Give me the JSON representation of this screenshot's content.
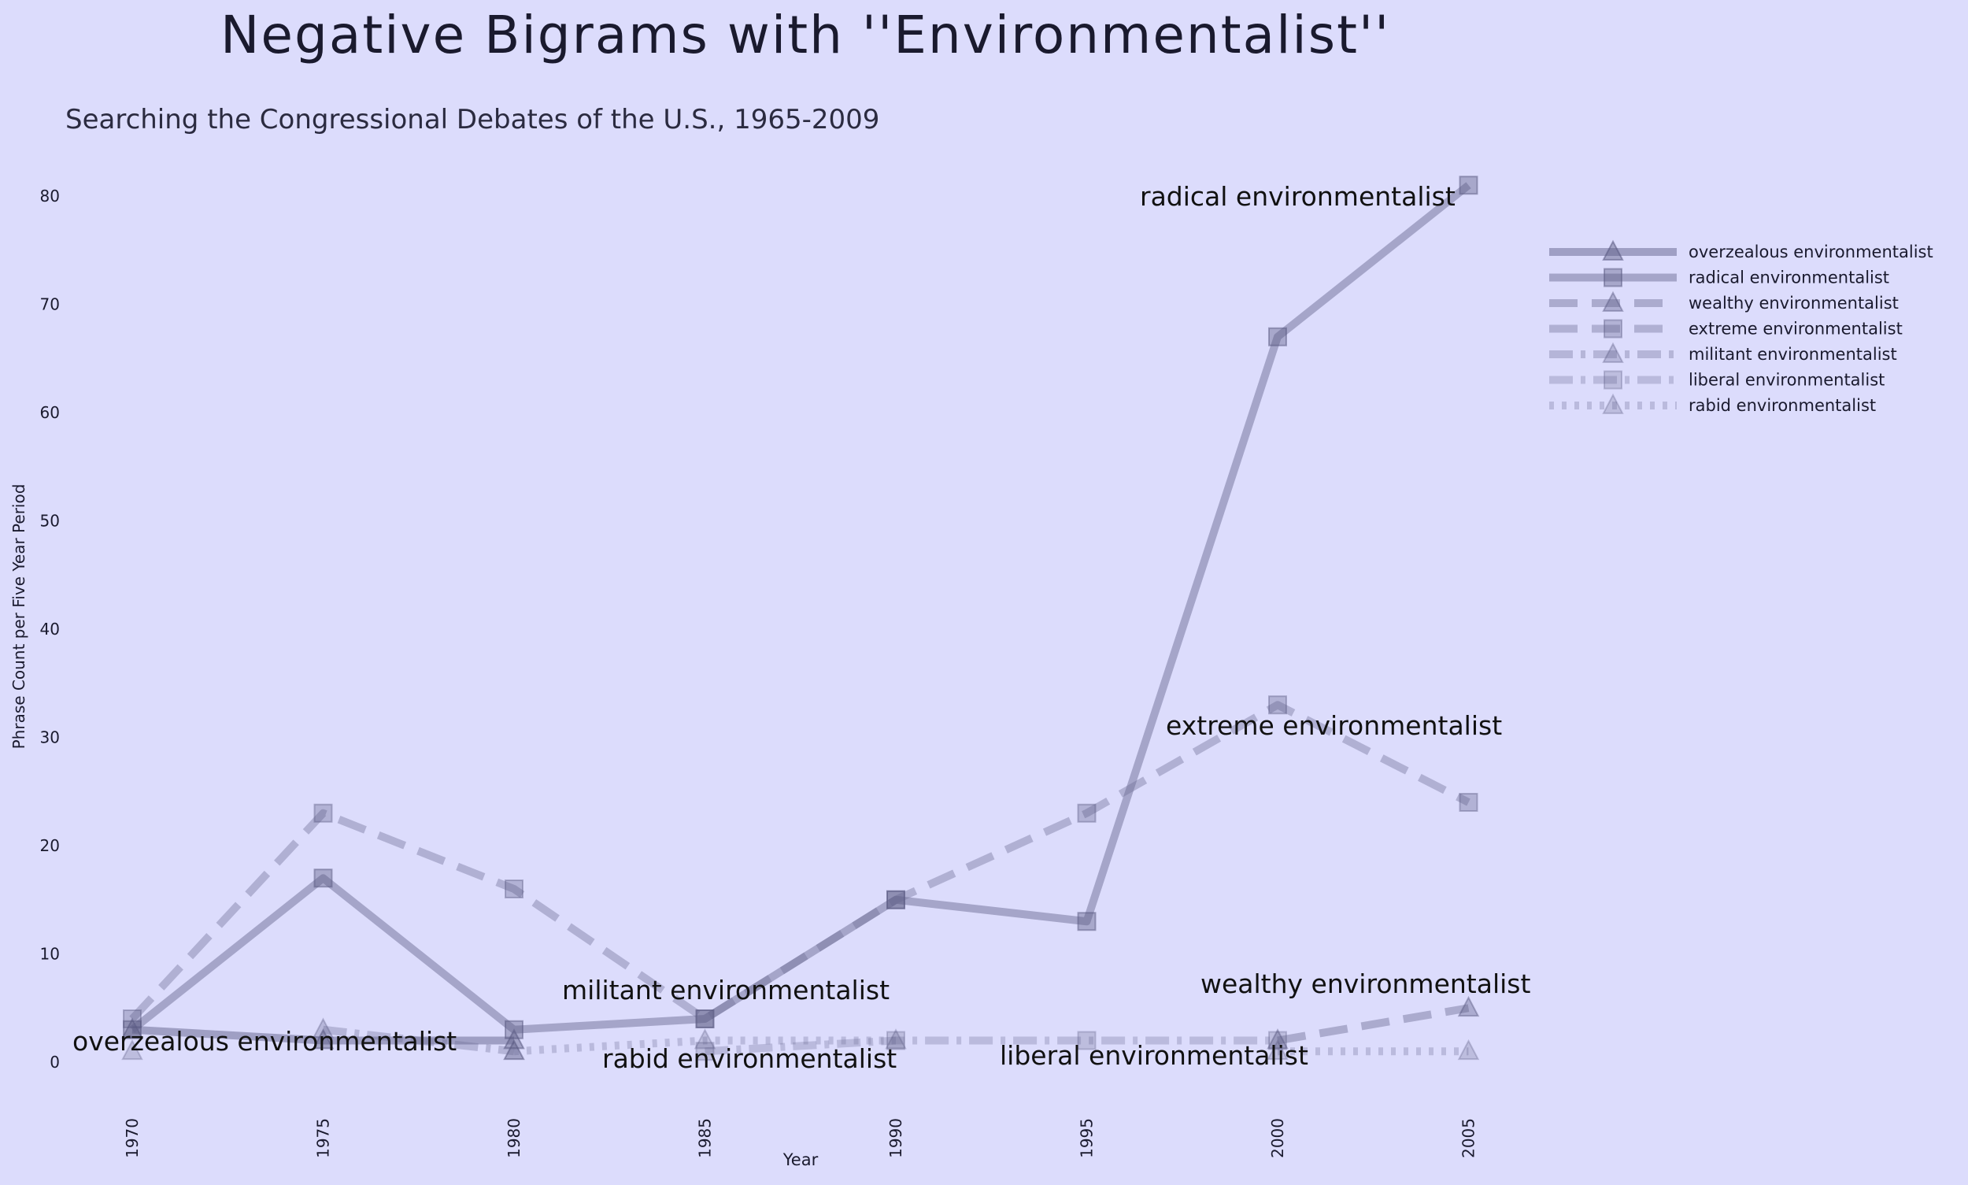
{
  "chart_data": {
    "type": "line",
    "title": "Negative Bigrams with ''Environmentalist''",
    "subtitle": "Searching the Congressional Debates of the U.S., 1965-2009",
    "xlabel": "Year",
    "ylabel": "Phrase Count per Five Year Period",
    "x": [
      1970,
      1975,
      1980,
      1985,
      1990,
      1995,
      2000,
      2005
    ],
    "xticks": [
      "1970",
      "1975",
      "1980",
      "1985",
      "1990",
      "1995",
      "2000",
      "2005"
    ],
    "yticks": [
      0,
      10,
      20,
      30,
      40,
      50,
      60,
      70,
      80
    ],
    "ylim": [
      0,
      82
    ],
    "grid": false,
    "legend_position": "top-right",
    "series": [
      {
        "name": "overzealous environmentalist",
        "values": [
          3,
          2,
          2,
          null,
          null,
          null,
          null,
          null
        ],
        "marker": "triangle",
        "dash": "solid",
        "opacity": 0.55,
        "label_near_x": 1970
      },
      {
        "name": "radical environmentalist",
        "values": [
          3,
          17,
          3,
          4,
          15,
          13,
          67,
          81
        ],
        "marker": "square",
        "dash": "solid",
        "opacity": 0.5,
        "label_near_x": 2005
      },
      {
        "name": "wealthy environmentalist",
        "values": [
          null,
          null,
          null,
          null,
          null,
          null,
          2,
          5
        ],
        "marker": "triangle",
        "dash": "dashed",
        "opacity": 0.45,
        "label_near_x": 2005
      },
      {
        "name": "extreme environmentalist",
        "values": [
          4,
          23,
          16,
          4,
          15,
          23,
          33,
          24
        ],
        "marker": "square",
        "dash": "dashed",
        "opacity": 0.4,
        "label_near_x": 2000
      },
      {
        "name": "militant environmentalist",
        "values": [
          null,
          3,
          1,
          null,
          null,
          null,
          null,
          null
        ],
        "marker": "triangle",
        "dash": "dashdot",
        "opacity": 0.35,
        "label_near_x": 1985
      },
      {
        "name": "liberal environmentalist",
        "values": [
          null,
          null,
          null,
          1,
          2,
          2,
          2,
          null
        ],
        "marker": "square",
        "dash": "dashdot",
        "opacity": 0.3,
        "label_near_x": 1995
      },
      {
        "name": "rabid environmentalist",
        "values": [
          1,
          null,
          1,
          2,
          2,
          null,
          1,
          1
        ],
        "marker": "triangle",
        "dash": "dotted",
        "opacity": 0.3,
        "label_near_x": 1985
      }
    ],
    "line_color": "#6e6e96",
    "marker_color": "#5a5a82",
    "text_color": "#1a1a2e"
  }
}
